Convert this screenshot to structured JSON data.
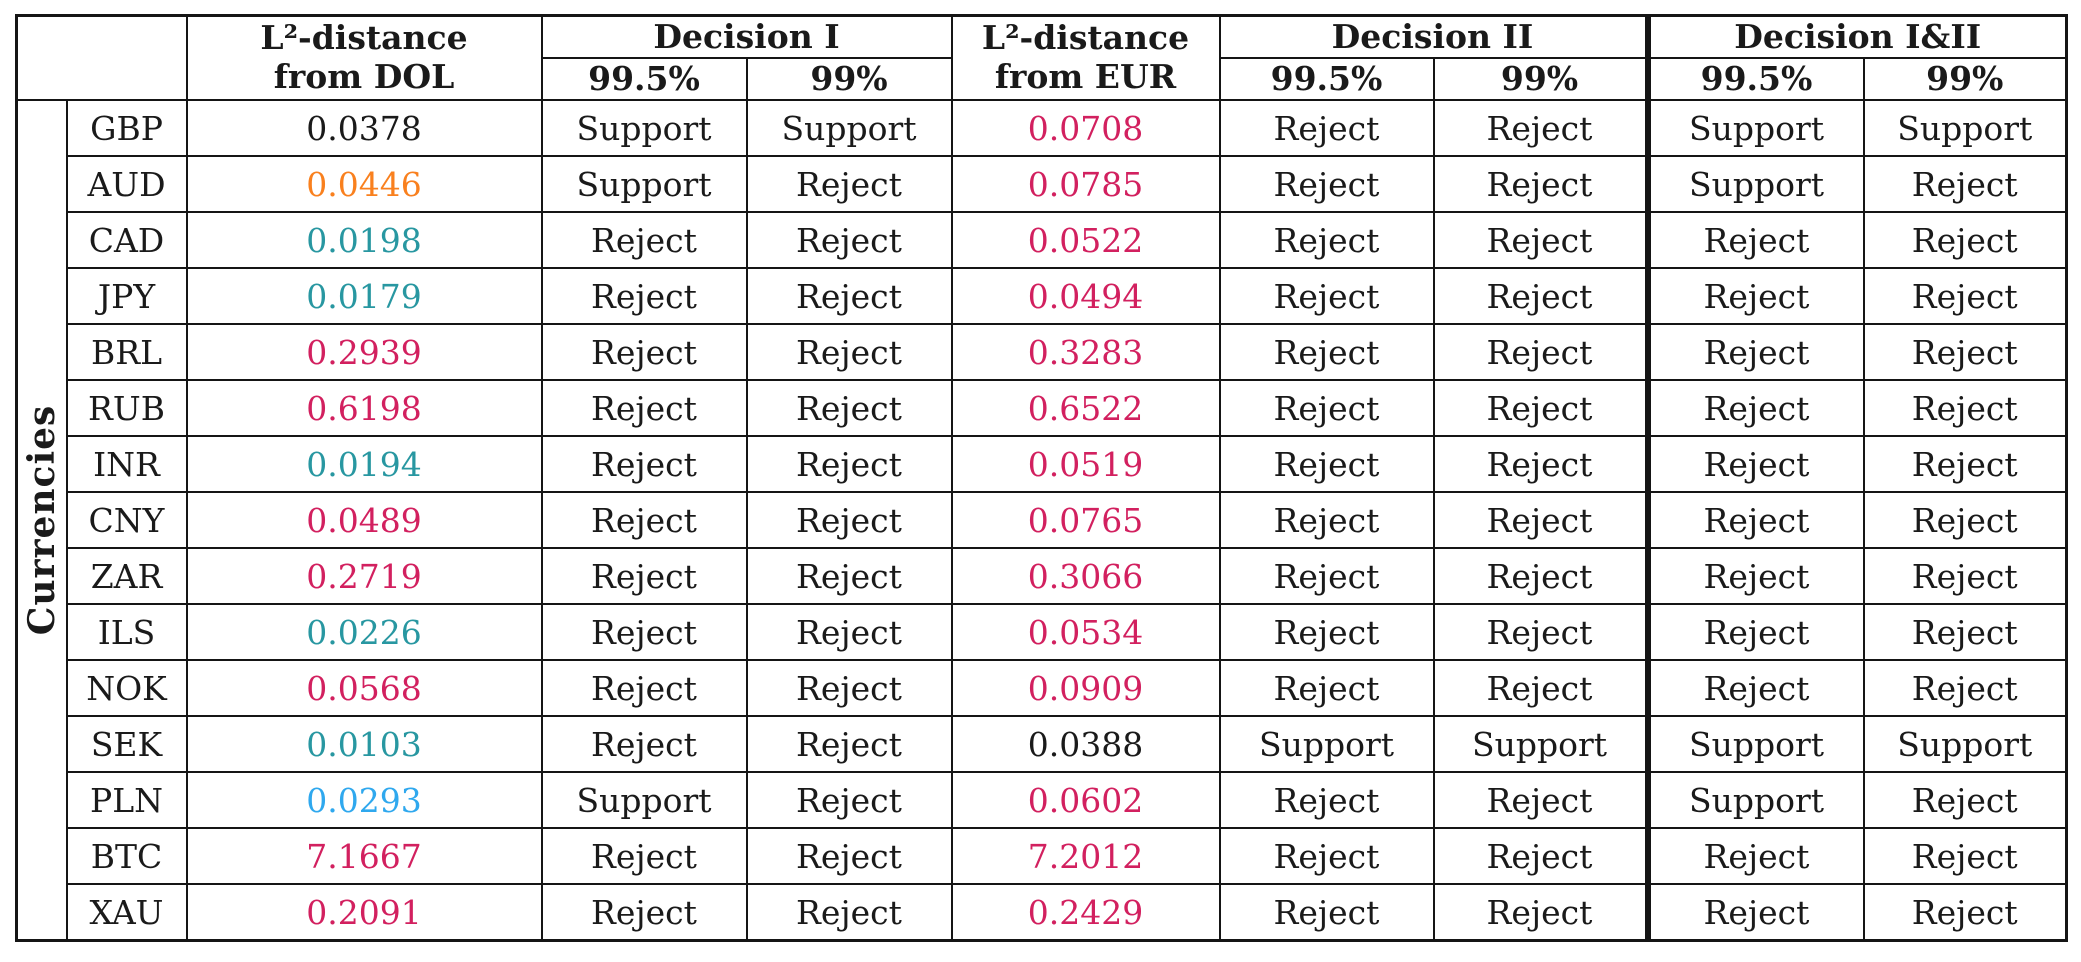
{
  "table": {
    "row_group_label": "Currencies",
    "header": {
      "col_dol": {
        "line1": "L²-distance",
        "line2": "from DOL"
      },
      "col_decision1": "Decision I",
      "col_eur": {
        "line1": "L²-distance",
        "line2": "from EUR"
      },
      "col_decision2": "Decision II",
      "col_decision12": "Decision I&II",
      "sub_995": "99.5%",
      "sub_99": "99%"
    },
    "colors": {
      "black": "#1a1a1a",
      "pink": "#d2205f",
      "orange": "#f9801e",
      "teal": "#2897a1",
      "lightblue": "#2fa8ee"
    },
    "rows": [
      {
        "currency": "GBP",
        "dol": "0.0378",
        "dol_color": "black",
        "d1_995": "Support",
        "d1_99": "Support",
        "eur": "0.0708",
        "eur_color": "pink",
        "d2_995": "Reject",
        "d2_99": "Reject",
        "d12_995": "Support",
        "d12_99": "Support"
      },
      {
        "currency": "AUD",
        "dol": "0.0446",
        "dol_color": "orange",
        "d1_995": "Support",
        "d1_99": "Reject",
        "eur": "0.0785",
        "eur_color": "pink",
        "d2_995": "Reject",
        "d2_99": "Reject",
        "d12_995": "Support",
        "d12_99": "Reject"
      },
      {
        "currency": "CAD",
        "dol": "0.0198",
        "dol_color": "teal",
        "d1_995": "Reject",
        "d1_99": "Reject",
        "eur": "0.0522",
        "eur_color": "pink",
        "d2_995": "Reject",
        "d2_99": "Reject",
        "d12_995": "Reject",
        "d12_99": "Reject"
      },
      {
        "currency": "JPY",
        "dol": "0.0179",
        "dol_color": "teal",
        "d1_995": "Reject",
        "d1_99": "Reject",
        "eur": "0.0494",
        "eur_color": "pink",
        "d2_995": "Reject",
        "d2_99": "Reject",
        "d12_995": "Reject",
        "d12_99": "Reject"
      },
      {
        "currency": "BRL",
        "dol": "0.2939",
        "dol_color": "pink",
        "d1_995": "Reject",
        "d1_99": "Reject",
        "eur": "0.3283",
        "eur_color": "pink",
        "d2_995": "Reject",
        "d2_99": "Reject",
        "d12_995": "Reject",
        "d12_99": "Reject"
      },
      {
        "currency": "RUB",
        "dol": "0.6198",
        "dol_color": "pink",
        "d1_995": "Reject",
        "d1_99": "Reject",
        "eur": "0.6522",
        "eur_color": "pink",
        "d2_995": "Reject",
        "d2_99": "Reject",
        "d12_995": "Reject",
        "d12_99": "Reject"
      },
      {
        "currency": "INR",
        "dol": "0.0194",
        "dol_color": "teal",
        "d1_995": "Reject",
        "d1_99": "Reject",
        "eur": "0.0519",
        "eur_color": "pink",
        "d2_995": "Reject",
        "d2_99": "Reject",
        "d12_995": "Reject",
        "d12_99": "Reject"
      },
      {
        "currency": "CNY",
        "dol": "0.0489",
        "dol_color": "pink",
        "d1_995": "Reject",
        "d1_99": "Reject",
        "eur": "0.0765",
        "eur_color": "pink",
        "d2_995": "Reject",
        "d2_99": "Reject",
        "d12_995": "Reject",
        "d12_99": "Reject"
      },
      {
        "currency": "ZAR",
        "dol": "0.2719",
        "dol_color": "pink",
        "d1_995": "Reject",
        "d1_99": "Reject",
        "eur": "0.3066",
        "eur_color": "pink",
        "d2_995": "Reject",
        "d2_99": "Reject",
        "d12_995": "Reject",
        "d12_99": "Reject"
      },
      {
        "currency": "ILS",
        "dol": "0.0226",
        "dol_color": "teal",
        "d1_995": "Reject",
        "d1_99": "Reject",
        "eur": "0.0534",
        "eur_color": "pink",
        "d2_995": "Reject",
        "d2_99": "Reject",
        "d12_995": "Reject",
        "d12_99": "Reject"
      },
      {
        "currency": "NOK",
        "dol": "0.0568",
        "dol_color": "pink",
        "d1_995": "Reject",
        "d1_99": "Reject",
        "eur": "0.0909",
        "eur_color": "pink",
        "d2_995": "Reject",
        "d2_99": "Reject",
        "d12_995": "Reject",
        "d12_99": "Reject"
      },
      {
        "currency": "SEK",
        "dol": "0.0103",
        "dol_color": "teal",
        "d1_995": "Reject",
        "d1_99": "Reject",
        "eur": "0.0388",
        "eur_color": "black",
        "d2_995": "Support",
        "d2_99": "Support",
        "d12_995": "Support",
        "d12_99": "Support"
      },
      {
        "currency": "PLN",
        "dol": "0.0293",
        "dol_color": "lightblue",
        "d1_995": "Support",
        "d1_99": "Reject",
        "eur": "0.0602",
        "eur_color": "pink",
        "d2_995": "Reject",
        "d2_99": "Reject",
        "d12_995": "Support",
        "d12_99": "Reject"
      },
      {
        "currency": "BTC",
        "dol": "7.1667",
        "dol_color": "pink",
        "d1_995": "Reject",
        "d1_99": "Reject",
        "eur": "7.2012",
        "eur_color": "pink",
        "d2_995": "Reject",
        "d2_99": "Reject",
        "d12_995": "Reject",
        "d12_99": "Reject"
      },
      {
        "currency": "XAU",
        "dol": "0.2091",
        "dol_color": "pink",
        "d1_995": "Reject",
        "d1_99": "Reject",
        "eur": "0.2429",
        "eur_color": "pink",
        "d2_995": "Reject",
        "d2_99": "Reject",
        "d12_995": "Reject",
        "d12_99": "Reject"
      }
    ]
  }
}
